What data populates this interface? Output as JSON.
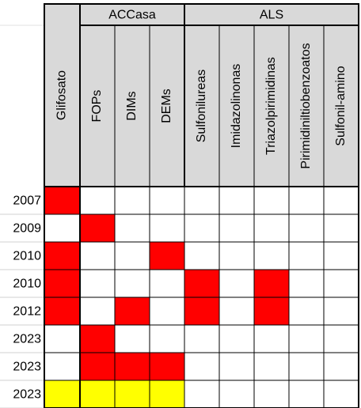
{
  "table": {
    "groups": [
      "ACCasa",
      "ALS"
    ],
    "columns": [
      "Glifosato",
      "FOPs",
      "DIMs",
      "DEMs",
      "Sulfonilureas",
      "Imidazolinonas",
      "Triazolpirimidinas",
      "Pirimidiniltiobenzoatos",
      "Sulfonil-amino"
    ],
    "rows": [
      {
        "label": "2007",
        "fill": [
          "#ff0000",
          "#ffffff",
          "#ffffff",
          "#ffffff",
          "#ffffff",
          "#ffffff",
          "#ffffff",
          "#ffffff",
          "#ffffff"
        ]
      },
      {
        "label": "2009",
        "fill": [
          "#ffffff",
          "#ff0000",
          "#ffffff",
          "#ffffff",
          "#ffffff",
          "#ffffff",
          "#ffffff",
          "#ffffff",
          "#ffffff"
        ]
      },
      {
        "label": "2010",
        "fill": [
          "#ff0000",
          "#ffffff",
          "#ffffff",
          "#ff0000",
          "#ffffff",
          "#ffffff",
          "#ffffff",
          "#ffffff",
          "#ffffff"
        ]
      },
      {
        "label": "2010",
        "fill": [
          "#ff0000",
          "#ffffff",
          "#ffffff",
          "#ffffff",
          "#ff0000",
          "#ffffff",
          "#ff0000",
          "#ffffff",
          "#ffffff"
        ]
      },
      {
        "label": "2012",
        "fill": [
          "#ff0000",
          "#ffffff",
          "#ff0000",
          "#ffffff",
          "#ff0000",
          "#ffffff",
          "#ff0000",
          "#ffffff",
          "#ffffff"
        ]
      },
      {
        "label": "2023",
        "fill": [
          "#ffffff",
          "#ff0000",
          "#ffffff",
          "#ffffff",
          "#ffffff",
          "#ffffff",
          "#ffffff",
          "#ffffff",
          "#ffffff"
        ]
      },
      {
        "label": "2023",
        "fill": [
          "#ffffff",
          "#ff0000",
          "#ff0000",
          "#ff0000",
          "#ffffff",
          "#ffffff",
          "#ffffff",
          "#ffffff",
          "#ffffff"
        ]
      },
      {
        "label": "2023",
        "fill": [
          "#ffff00",
          "#ffff00",
          "#ffff00",
          "#ffff00",
          "#ffffff",
          "#ffffff",
          "#ffffff",
          "#ffffff",
          "#ffffff"
        ]
      }
    ]
  }
}
